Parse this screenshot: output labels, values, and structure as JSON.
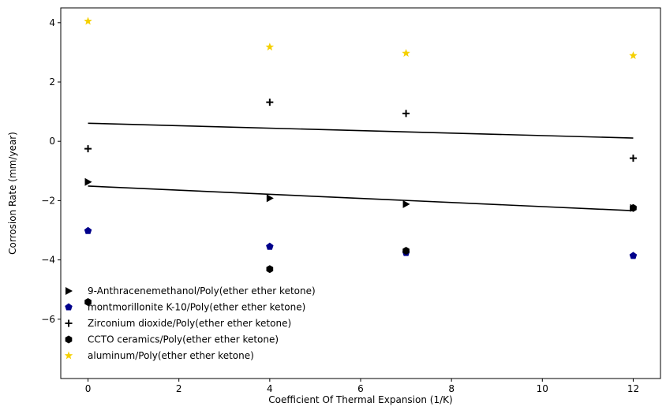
{
  "chart_data": {
    "type": "scatter",
    "title": "",
    "xlabel": "Coefficient Of Thermal Expansion (1/K)",
    "ylabel": "Corrosion Rate (mm/year)",
    "xlim": [
      -0.6,
      12.6
    ],
    "ylim": [
      -8.0,
      4.5
    ],
    "xticks": [
      0,
      2,
      4,
      6,
      8,
      10,
      12
    ],
    "yticks": [
      -6,
      -4,
      -2,
      0,
      2,
      4
    ],
    "grid": false,
    "legend_position": "lower-left",
    "series": [
      {
        "name": "9-Anthracenemethanol/Poly(ether ether ketone)",
        "marker": "triangle-right",
        "color": "#000000",
        "x": [
          0,
          4,
          7,
          12
        ],
        "y": [
          -1.37,
          -1.92,
          -2.12,
          -2.25
        ]
      },
      {
        "name": "montmorillonite K-10/Poly(ether ether ketone)",
        "marker": "pentagon",
        "color": "#00008b",
        "x": [
          0,
          4,
          7,
          12
        ],
        "y": [
          -3.02,
          -3.55,
          -3.76,
          -3.86
        ]
      },
      {
        "name": "Zirconium dioxide/Poly(ether ether ketone)",
        "marker": "plus",
        "color": "#000000",
        "x": [
          0,
          4,
          7,
          12
        ],
        "y": [
          -0.25,
          1.32,
          0.94,
          -0.57
        ]
      },
      {
        "name": "CCTO ceramics/Poly(ether ether ketone)",
        "marker": "hexagon",
        "color": "#000000",
        "x": [
          0,
          4,
          7,
          12
        ],
        "y": [
          -5.42,
          -4.31,
          -3.69,
          -2.25
        ]
      },
      {
        "name": "aluminum/Poly(ether ether ketone)",
        "marker": "star",
        "color": "#f5d000",
        "x": [
          0,
          4,
          7,
          12
        ],
        "y": [
          4.05,
          3.18,
          2.97,
          2.89
        ]
      }
    ],
    "trend_lines": [
      {
        "x": [
          0,
          12
        ],
        "y": [
          0.61,
          0.11
        ],
        "color": "#000000"
      },
      {
        "x": [
          0,
          12
        ],
        "y": [
          -1.51,
          -2.34
        ],
        "color": "#000000"
      }
    ]
  }
}
